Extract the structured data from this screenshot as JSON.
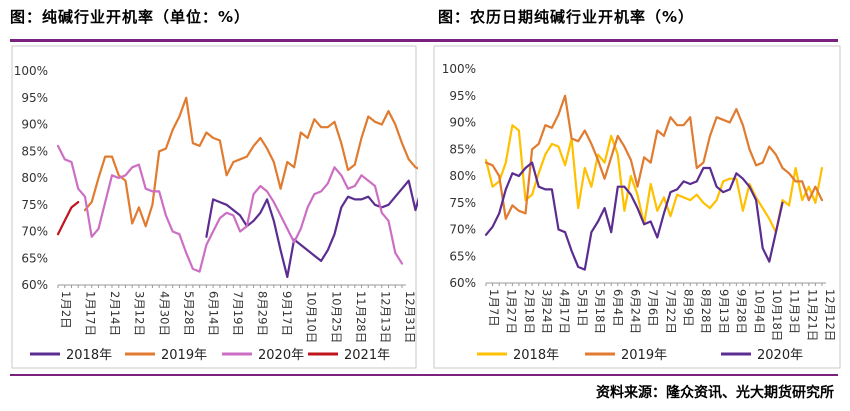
{
  "titles": {
    "left": "图：纯碱行业开机率（单位：%）",
    "right": "图：农历日期纯碱行业开机率（%）"
  },
  "source": "资料来源：隆众资讯、光大期货研究所",
  "chart_data": [
    {
      "type": "line",
      "ylim": [
        60,
        100
      ],
      "yticks": [
        "60%",
        "65%",
        "70%",
        "75%",
        "80%",
        "85%",
        "90%",
        "95%",
        "100%"
      ],
      "x_tick_labels": [
        "1月2日",
        "1月17日",
        "2月14日",
        "3月12日",
        "4月30日",
        "5月28日",
        "6月14日",
        "7月19日",
        "8月29日",
        "9月17日",
        "10月10日",
        "10月25日",
        "11月28日",
        "12月13日",
        "12月31日"
      ],
      "x_count": 52,
      "series": [
        {
          "name": "2018年",
          "color": "#5b2d90",
          "start": 22,
          "values": [
            69,
            76,
            75.5,
            75,
            74,
            73,
            71,
            72,
            73.5,
            76,
            72,
            66.5,
            61.5,
            68.5,
            67.5,
            66.5,
            65.5,
            64.5,
            66.5,
            69.5,
            74.5,
            76.5,
            76,
            76,
            76.5,
            75,
            74.5,
            75,
            76.5,
            78,
            79.5,
            74,
            78.5,
            75.5,
            73
          ]
        },
        {
          "name": "2019年",
          "color": "#e07b30",
          "start": 4,
          "values": [
            74,
            75.5,
            80,
            84,
            84,
            80.5,
            79.5,
            71.5,
            74.5,
            71,
            75,
            85,
            85.5,
            89,
            91.5,
            95,
            86.5,
            86,
            88.5,
            87.5,
            87,
            80.5,
            83,
            83.5,
            84,
            86,
            87.5,
            85.5,
            83,
            78,
            83,
            82,
            88.5,
            87.5,
            91,
            89.5,
            89.5,
            90.5,
            86.5,
            81.5,
            82.5,
            87.5,
            91.5,
            90.5,
            90,
            92.5,
            90,
            86.5,
            83.5,
            82,
            81.5
          ]
        },
        {
          "name": "2020年",
          "color": "#cc6fc4",
          "start": 0,
          "values": [
            86,
            83.5,
            83,
            78,
            76.5,
            69,
            70.5,
            75.5,
            80.5,
            80,
            80.5,
            82,
            82.5,
            78,
            77.5,
            77.5,
            73,
            70,
            69.5,
            66,
            63,
            62.5,
            67.5,
            70,
            72.5,
            73.5,
            73,
            70,
            71,
            77,
            78.5,
            77.5,
            75.5,
            73,
            70.5,
            68,
            70.5,
            74.5,
            77,
            77.5,
            79,
            82,
            80.5,
            78,
            78.5,
            80.5,
            79.5,
            78.5,
            73.5,
            72,
            66,
            64
          ]
        },
        {
          "name": "2021年",
          "color": "#c0141c",
          "start": 0,
          "values": [
            69.5,
            72,
            74.5,
            75.5
          ]
        }
      ]
    },
    {
      "type": "line",
      "ylim": [
        60,
        100
      ],
      "yticks": [
        "60%",
        "65%",
        "70%",
        "75%",
        "80%",
        "85%",
        "90%",
        "95%",
        "100%"
      ],
      "x_tick_labels": [
        "1月7日",
        "1月27日",
        "2月18日",
        "3月24日",
        "4月17日",
        "5月1日",
        "5月18日",
        "6月4日",
        "6月24日",
        "7月6日",
        "7月22日",
        "8月9日",
        "8月28日",
        "9月13日",
        "9月28日",
        "10月4日",
        "10月18日",
        "11月3日",
        "11月21日",
        "12月12日"
      ],
      "x_count": 52,
      "series": [
        {
          "name": "2018年",
          "color": "#ffc000",
          "start": 0,
          "values": [
            83,
            78,
            79,
            82.5,
            89.5,
            88.5,
            75.5,
            76.5,
            80.5,
            84,
            86,
            85.5,
            82,
            87,
            74,
            81.5,
            78,
            84,
            82.5,
            87.5,
            84,
            73.5,
            80,
            76.5,
            71,
            78.5,
            73.5,
            76,
            72.5,
            76.5,
            76,
            75.5,
            76.5,
            75,
            74,
            75.5,
            79,
            79.5,
            79.5,
            73.5,
            78.5,
            76,
            74,
            72,
            69.5,
            75.5,
            74.5,
            81.5,
            75.5,
            78,
            75,
            81.5
          ]
        },
        {
          "name": "2019年",
          "color": "#e07b30",
          "start": 0,
          "values": [
            82.5,
            82,
            80,
            72,
            74.5,
            73.5,
            73,
            85,
            86,
            89.5,
            89,
            91.5,
            95,
            87,
            86.5,
            88.5,
            86,
            83,
            79.5,
            83.5,
            87.5,
            85.5,
            83,
            78,
            83.5,
            82.5,
            88.5,
            87.5,
            91,
            89.5,
            89.5,
            91,
            81.5,
            82.5,
            87.5,
            91,
            90.5,
            90,
            92.5,
            89.5,
            85,
            82,
            82.5,
            85.5,
            84,
            81.5,
            80.5,
            79,
            79,
            75.5,
            78,
            75.5
          ]
        },
        {
          "name": "2020年",
          "color": "#5b2d90",
          "start": 0,
          "values": [
            69,
            70.5,
            73,
            77.5,
            80.5,
            80,
            81.5,
            82.5,
            78,
            77.5,
            77.5,
            70,
            69.5,
            66,
            63,
            62.5,
            69.5,
            71.5,
            74,
            69.5,
            78,
            78,
            76.5,
            74,
            71,
            71.5,
            68.5,
            73,
            77,
            77.5,
            79,
            78.5,
            79,
            81.5,
            81.5,
            78,
            77,
            77.5,
            80.5,
            79.5,
            78,
            75.5,
            66.5,
            64,
            69.5,
            75
          ]
        }
      ]
    }
  ]
}
